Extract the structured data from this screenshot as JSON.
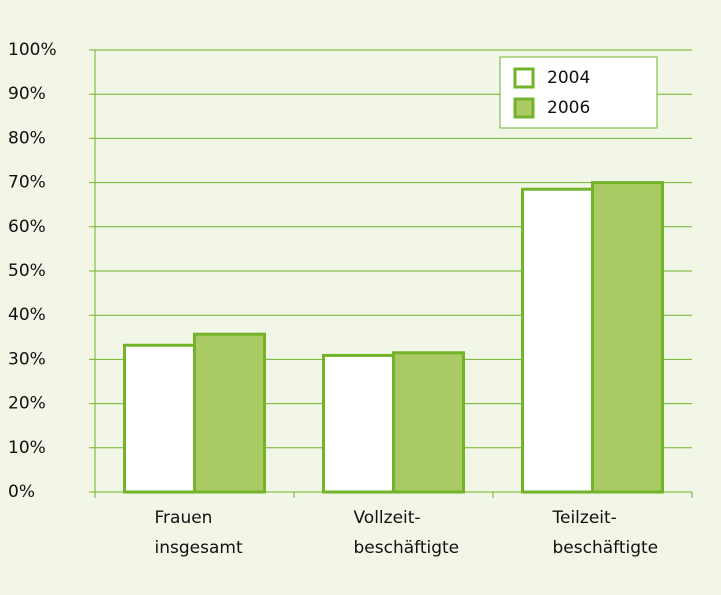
{
  "chart_data": {
    "type": "bar",
    "categories": [
      [
        "Frauen",
        "insgesamt"
      ],
      [
        "Vollzeit-",
        "beschäftigte"
      ],
      [
        "Teilzeit-",
        "beschäftigte"
      ]
    ],
    "series": [
      {
        "name": "2004",
        "color": "#ffffff",
        "values": [
          33.2,
          30.9,
          68.5
        ]
      },
      {
        "name": "2006",
        "color": "#aacb64",
        "values": [
          35.7,
          31.5,
          70
        ]
      }
    ],
    "edge_color": "#72b32a",
    "ylim": [
      0,
      100
    ],
    "yticks": [
      {
        "value": 0,
        "label": "0%"
      },
      {
        "value": 10,
        "label": "10%"
      },
      {
        "value": 20,
        "label": "20%"
      },
      {
        "value": 30,
        "label": "30%"
      },
      {
        "value": 40,
        "label": "40%"
      },
      {
        "value": 50,
        "label": "50%"
      },
      {
        "value": 60,
        "label": "60%"
      },
      {
        "value": 70,
        "label": "70%"
      },
      {
        "value": 80,
        "label": "80%"
      },
      {
        "value": 90,
        "label": "90%"
      },
      {
        "value": 100,
        "label": "100%"
      }
    ],
    "grid": true,
    "legend": "top-right"
  }
}
